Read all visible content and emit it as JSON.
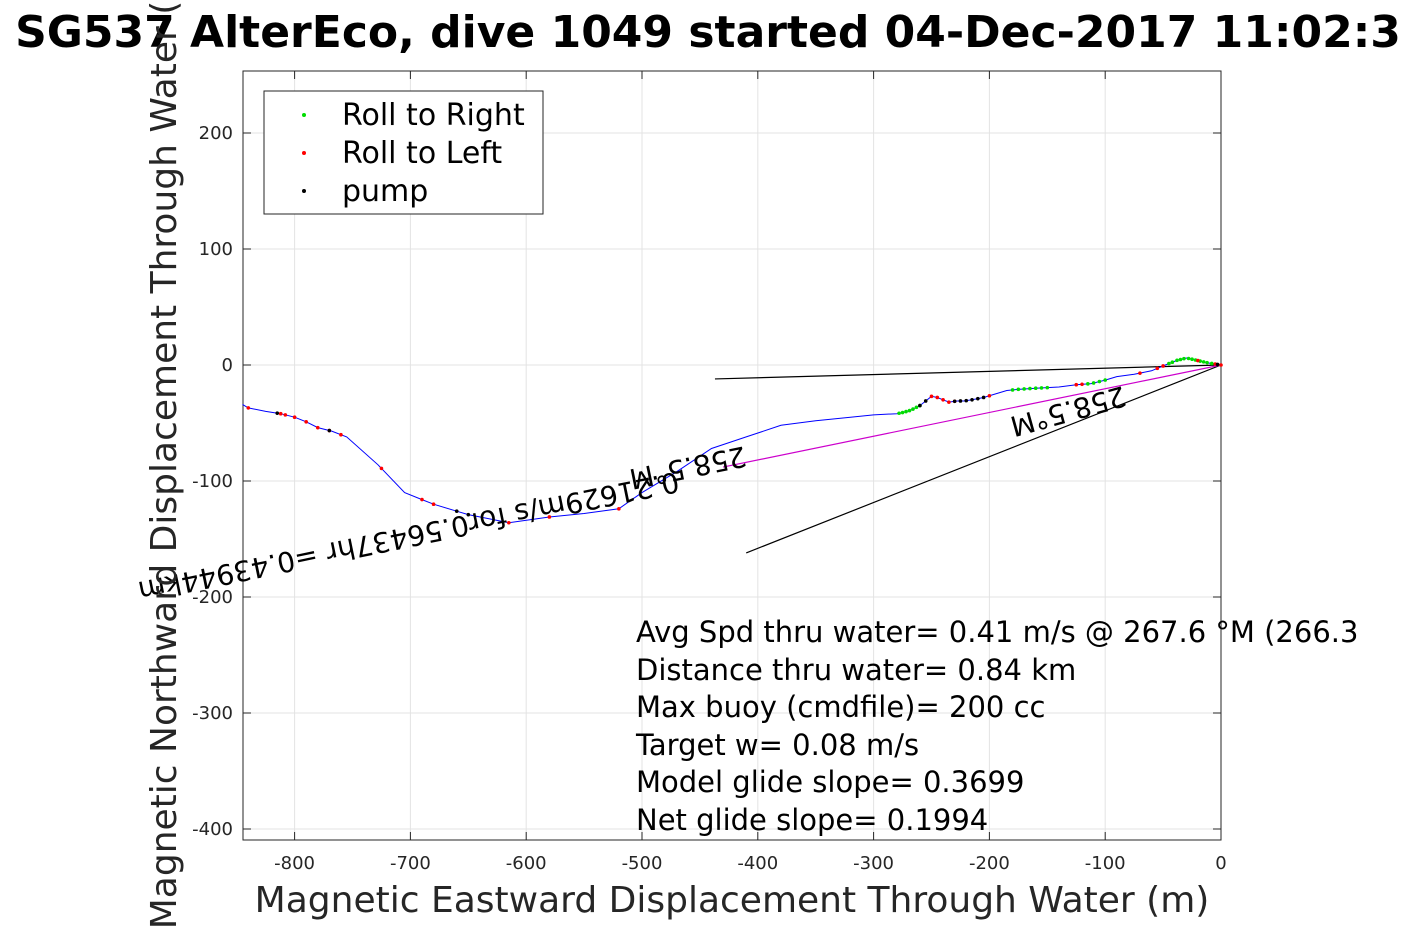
{
  "chart_data": {
    "type": "line",
    "title": "SG537 AlterEco, dive 1049 started 04-Dec-2017 11:02:3",
    "xlabel": "Magnetic Eastward Displacement Through Water (m)",
    "ylabel": "Magnetic Northward Displacement Through Water (",
    "xlim": [
      -845,
      0
    ],
    "ylim": [
      -410,
      255
    ],
    "xticks": [
      -800,
      -700,
      -600,
      -500,
      -400,
      -300,
      -200,
      -100,
      0
    ],
    "yticks": [
      200,
      100,
      0,
      -100,
      -200,
      -300,
      -400
    ],
    "grid": true,
    "legend_position": "top-left",
    "legend": [
      {
        "label": "Roll to Right",
        "color": "#00dd00"
      },
      {
        "label": "Roll to Left",
        "color": "#ff0000"
      },
      {
        "label": "pump",
        "color": "#000000"
      }
    ],
    "track": {
      "color": "#0000ff",
      "x": [
        0,
        -12,
        -25,
        -30,
        -38,
        -48,
        -60,
        -75,
        -90,
        -100,
        -112,
        -125,
        -140,
        -160,
        -175,
        -185,
        -195,
        -205,
        -215,
        -222,
        -228,
        -235,
        -240,
        -245,
        -250,
        -255,
        -260,
        -268,
        -275,
        -280,
        -300,
        -320,
        -350,
        -380,
        -410,
        -440,
        -470,
        -500,
        -520,
        -550,
        -580,
        -615,
        -630,
        -650,
        -660,
        -680,
        -690,
        -705,
        -728,
        -755,
        -768,
        -780,
        -790,
        -800,
        -812,
        -825,
        -840,
        -845
      ],
      "y": [
        0,
        2,
        5,
        6,
        4,
        0,
        -5,
        -8,
        -10,
        -13,
        -16,
        -17,
        -19,
        -20,
        -21,
        -22,
        -25,
        -28,
        -30,
        -31,
        -31,
        -32,
        -30,
        -28,
        -27,
        -31,
        -35,
        -39,
        -41,
        -42,
        -43,
        -45,
        -48,
        -52,
        -62,
        -72,
        -92,
        -110,
        -124,
        -128,
        -131,
        -136,
        -133,
        -129,
        -126,
        -120,
        -116,
        -110,
        -86,
        -62,
        -57,
        -54,
        -49,
        -45,
        -42,
        -40,
        -37,
        -34
      ]
    },
    "roll_right_x": [
      -8,
      -12,
      -15,
      -18,
      -22,
      -25,
      -28,
      -32,
      -35,
      -38,
      -42,
      -45,
      -100,
      -105,
      -110,
      -115,
      -150,
      -155,
      -160,
      -165,
      -170,
      -175,
      -180,
      -260,
      -263,
      -266,
      -269,
      -272,
      -275,
      -278
    ],
    "roll_left_x": [
      0,
      -5,
      -20,
      -50,
      -55,
      -70,
      -120,
      -125,
      -200,
      -230,
      -235,
      -240,
      -245,
      -250,
      -520,
      -580,
      -615,
      -680,
      -690,
      -725,
      -760,
      -770,
      -780,
      -790,
      -800,
      -808,
      -812,
      -840
    ],
    "pump_x": [
      -3,
      -205,
      -210,
      -215,
      -220,
      -225,
      -230,
      -255,
      -260,
      -650,
      -660,
      -770,
      -815
    ],
    "heading_lines": [
      {
        "from": [
          0,
          0
        ],
        "to": [
          -437,
          -12
        ]
      },
      {
        "from": [
          0,
          0
        ],
        "to": [
          -410,
          -162
        ]
      },
      {
        "from": [
          0,
          0
        ],
        "to": [
          -430,
          -88
        ],
        "color": "#cc00cc"
      }
    ],
    "annotations": [
      {
        "text": "0.21629m/s for0.56437hr =0.43944km",
        "x": -470,
        "y": -92
      },
      {
        "text": "258.5°M",
        "x": -412,
        "y": -70
      },
      {
        "text": "258.5°M",
        "x": -85,
        "y": -18
      }
    ],
    "stats": [
      "Avg Spd thru water=  0.41 m/s @ 267.6 °M (266.3",
      "Distance thru water=  0.84 km",
      "Max buoy (cmdfile)= 200 cc",
      "Target w= 0.08 m/s",
      "Model glide slope= 0.3699",
      "Net glide slope= 0.1994"
    ]
  }
}
